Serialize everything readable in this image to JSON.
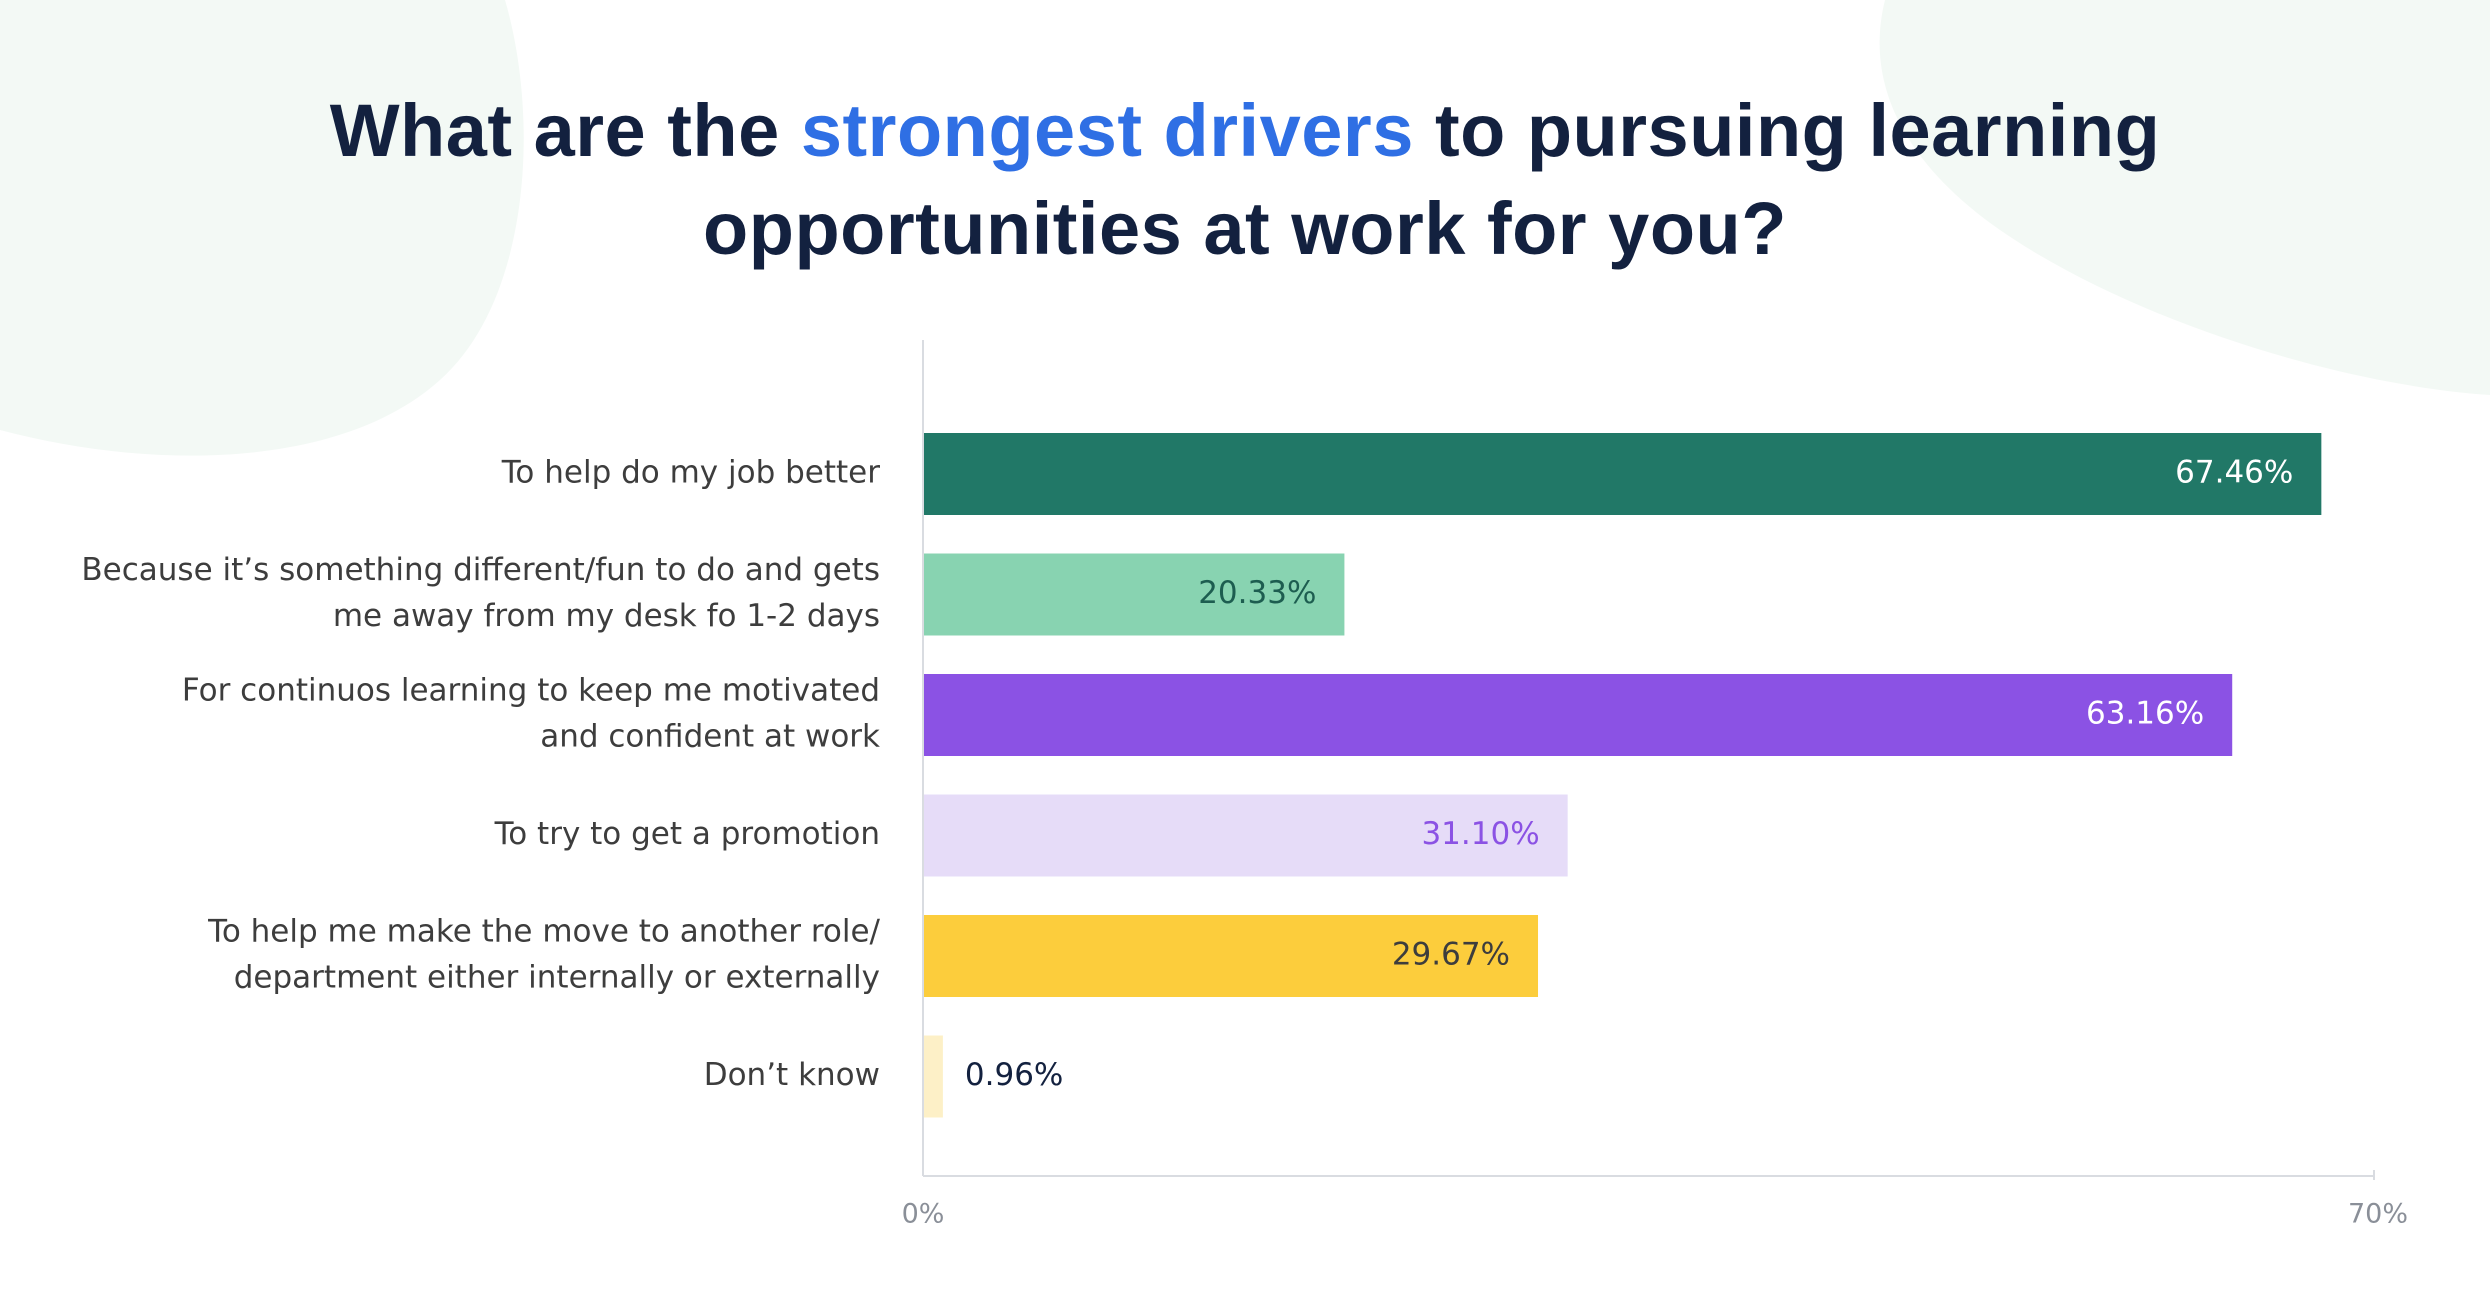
{
  "title": {
    "part1": "What are the ",
    "highlight": "strongest drivers",
    "part2": " to pursuing learning",
    "line2": "opportunities at work for you?"
  },
  "colors": {
    "title": "#13213f",
    "highlight": "#2f6fe4",
    "blob": "#f3f9f5",
    "axis": "#d9dce1"
  },
  "chart_data": {
    "type": "bar",
    "orientation": "horizontal",
    "categories": [
      [
        "To help do my job better"
      ],
      [
        "Because it’s something different/fun to do and gets",
        "me away from my desk fo 1-2 days"
      ],
      [
        "For continuos learning to keep me motivated",
        "and confident at work"
      ],
      [
        "To try to get a promotion"
      ],
      [
        "To help me make the move to another role/",
        "department either internally or externally"
      ],
      [
        "Don’t know"
      ]
    ],
    "values": [
      67.46,
      20.33,
      63.16,
      31.1,
      29.67,
      0.96
    ],
    "value_labels": [
      "67.46%",
      "20.33%",
      "63.16%",
      "31.10%",
      "29.67%",
      "0.96%"
    ],
    "bar_colors": [
      "#217867",
      "#88d3b1",
      "#8b52e4",
      "#e6dcf8",
      "#fccd3c",
      "#fdf0c7"
    ],
    "label_colors": [
      "#ffffff",
      "#1d5d50",
      "#ffffff",
      "#8b52e4",
      "#3d3d3d",
      "#13213f"
    ],
    "label_inside": [
      true,
      true,
      true,
      true,
      true,
      false
    ],
    "xlim": [
      0,
      70
    ],
    "tick_labels": [
      "0%",
      "70%"
    ],
    "grid": false,
    "legend": "none"
  }
}
